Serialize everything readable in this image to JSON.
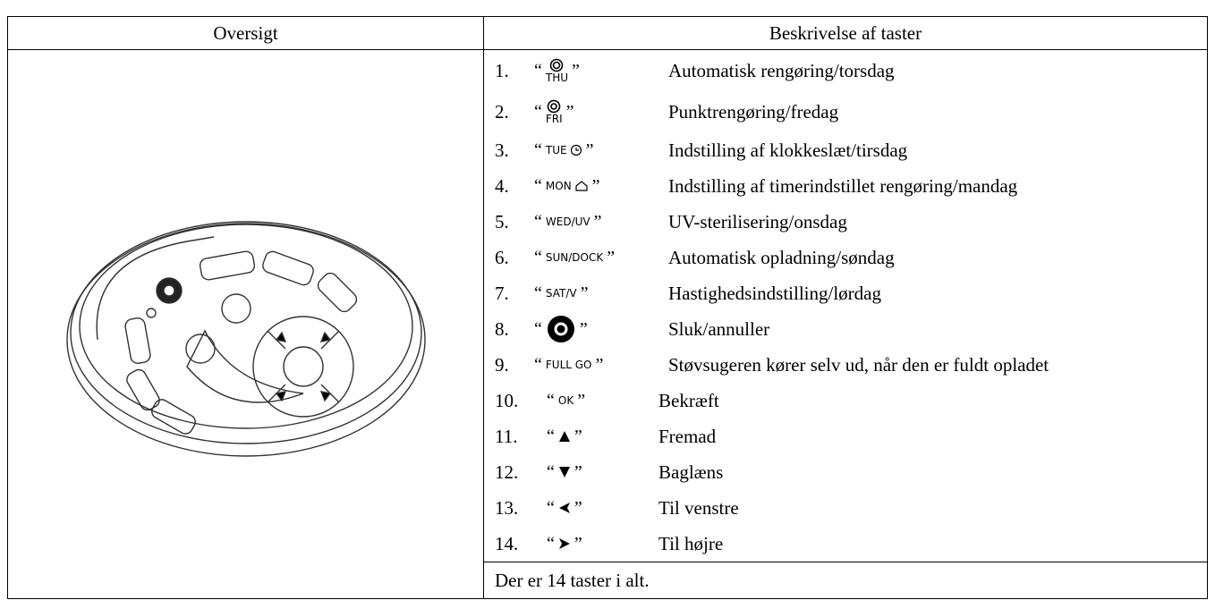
{
  "header": {
    "columns": [
      "Oversigt",
      "Beskrivelse af taster"
    ]
  },
  "quote_open": "“",
  "quote_close": "”",
  "items": [
    {
      "number": "1.",
      "key": "THU",
      "description": "Automatisk rengøring/torsdag"
    },
    {
      "number": "2.",
      "key": "FRI",
      "description": "Punktrengøring/fredag"
    },
    {
      "number": "3.",
      "key": "TUE",
      "description": "Indstilling af klokkeslæt/tirsdag"
    },
    {
      "number": "4.",
      "key": "MON",
      "description": "Indstilling af timerindstillet rengøring/mandag"
    },
    {
      "number": "5.",
      "key": "WED/UV",
      "description": "UV-sterilisering/onsdag"
    },
    {
      "number": "6.",
      "key": "SUN/DOCK",
      "description": "Automatisk opladning/søndag"
    },
    {
      "number": "7.",
      "key": "SAT/V",
      "description": "Hastighedsindstilling/lørdag"
    },
    {
      "number": "8.",
      "description": "Sluk/annuller"
    },
    {
      "number": "9.",
      "key": "FULL GO",
      "description": "Støvsugeren kører selv ud, når den er fuldt opladet"
    },
    {
      "number": "10.",
      "key": "OK",
      "description": "Bekræft"
    },
    {
      "number": "11.",
      "description": "Fremad"
    },
    {
      "number": "12.",
      "description": "Baglæns"
    },
    {
      "number": "13.",
      "description": "Til venstre"
    },
    {
      "number": "14.",
      "description": "Til højre"
    }
  ],
  "footer": "Der er 14 taster i alt."
}
